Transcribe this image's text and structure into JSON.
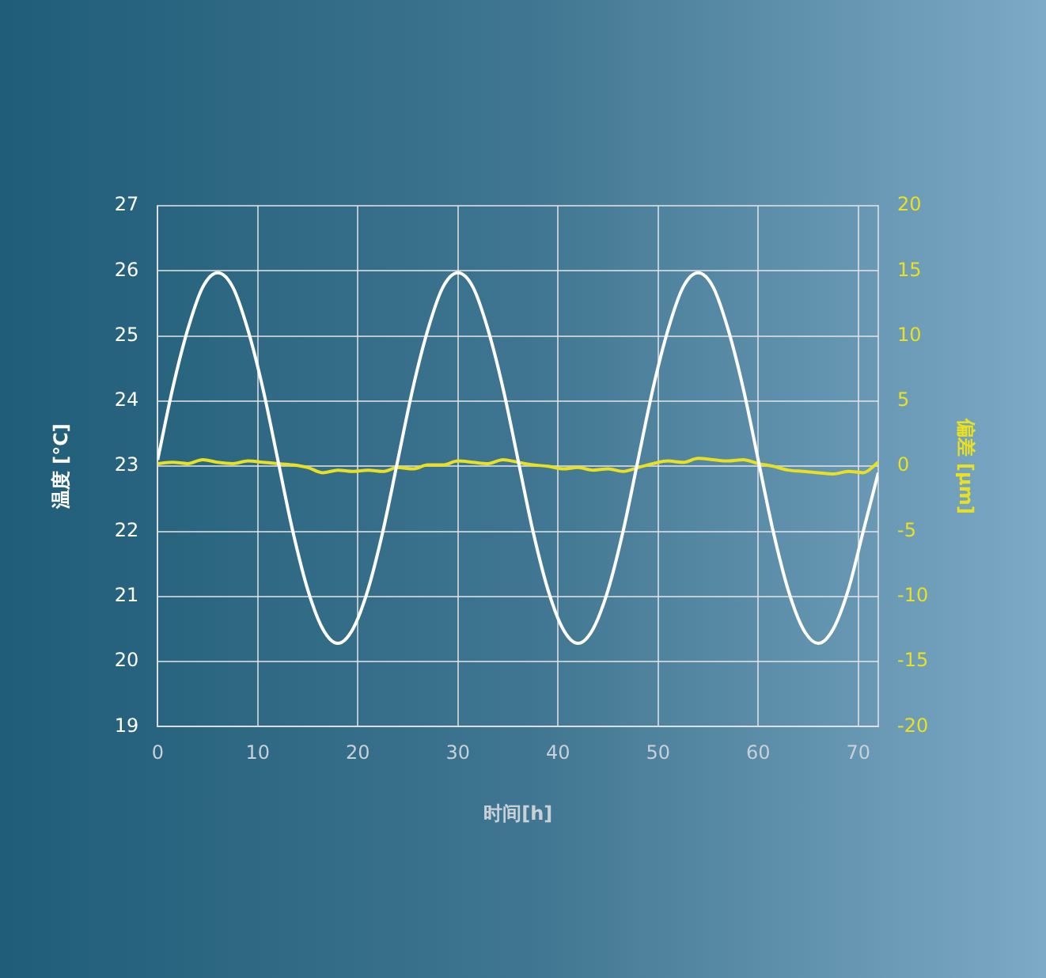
{
  "chart_data": {
    "type": "line",
    "xlabel": "时间[h]",
    "ylabel": "温度 [°C]",
    "y2label": "偏差 [µm]",
    "x": [
      0,
      1.5,
      3,
      4.5,
      6,
      7.5,
      9,
      10.5,
      12,
      13.5,
      15,
      16.5,
      18,
      19.5,
      21,
      22.5,
      24,
      25.5,
      27,
      28.5,
      30,
      31.5,
      33,
      34.5,
      36,
      37.5,
      39,
      40.5,
      42,
      43.5,
      45,
      46.5,
      48,
      49.5,
      51,
      52.5,
      54,
      55.5,
      57,
      58.5,
      60,
      61.5,
      63,
      64.5,
      66,
      67.5,
      69,
      70.5,
      72
    ],
    "series": [
      {
        "color": "#ffffff",
        "values": [
          23.1,
          24.2,
          25.1,
          25.75,
          25.97,
          25.75,
          25.1,
          24.2,
          23.1,
          22.0,
          21.1,
          20.5,
          20.28,
          20.5,
          21.1,
          22.0,
          23.1,
          24.2,
          25.1,
          25.75,
          25.97,
          25.75,
          25.1,
          24.2,
          23.1,
          22.0,
          21.1,
          20.5,
          20.28,
          20.5,
          21.1,
          22.0,
          23.1,
          24.2,
          25.1,
          25.75,
          25.97,
          25.75,
          25.1,
          24.2,
          23.1,
          22.0,
          21.1,
          20.5,
          20.28,
          20.5,
          21.1,
          22.0,
          22.9
        ]
      },
      {
        "color": "#e8e020",
        "axis": "y2",
        "values": [
          0.2,
          0.3,
          0.2,
          0.5,
          0.3,
          0.2,
          0.4,
          0.3,
          0.2,
          0.1,
          -0.1,
          -0.5,
          -0.3,
          -0.4,
          -0.3,
          -0.4,
          -0.1,
          -0.2,
          0.1,
          0.1,
          0.4,
          0.3,
          0.2,
          0.5,
          0.3,
          0.1,
          0.0,
          -0.2,
          -0.1,
          -0.3,
          -0.2,
          -0.4,
          -0.1,
          0.2,
          0.4,
          0.3,
          0.6,
          0.5,
          0.4,
          0.5,
          0.2,
          0.0,
          -0.3,
          -0.4,
          -0.5,
          -0.6,
          -0.4,
          -0.5,
          0.3
        ]
      }
    ],
    "xlim": [
      0,
      72
    ],
    "xticks": [
      0,
      10,
      20,
      30,
      40,
      50,
      60,
      70
    ],
    "ylim": [
      19,
      27
    ],
    "yticks": [
      19,
      20,
      21,
      22,
      23,
      24,
      25,
      26,
      27
    ],
    "y2lim": [
      -20,
      20
    ],
    "y2ticks": [
      -20,
      -15,
      -10,
      -5,
      0,
      5,
      10,
      15,
      20
    ],
    "grid": true,
    "legend": false,
    "marker": "none",
    "line_style": "solid"
  }
}
